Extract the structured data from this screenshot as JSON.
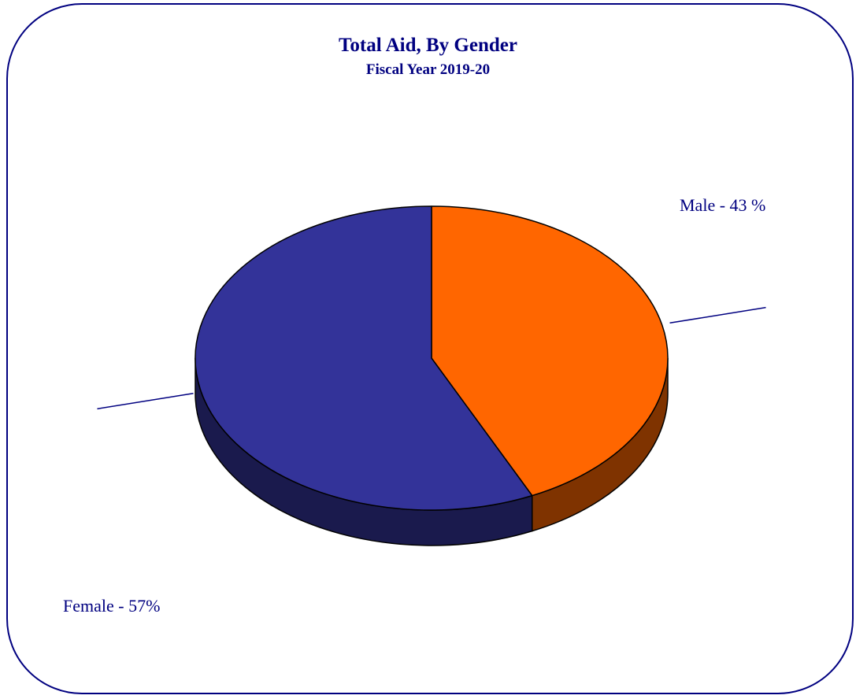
{
  "chart_data": {
    "type": "pie",
    "title": "Total Aid, By Gender",
    "subtitle": "Fiscal Year 2019-20",
    "slices": [
      {
        "name": "Male",
        "value": 43,
        "label": "Male - 43 %",
        "color": "#FF6600",
        "side_color": "#7F3300"
      },
      {
        "name": "Female",
        "value": 57,
        "label": "Female - 57%",
        "color": "#333399",
        "side_color": "#1A1A4D"
      }
    ],
    "three_d": true,
    "start": "12 o'clock, clockwise",
    "legend": "none",
    "border_color": "#000080",
    "text_color": "#000080"
  }
}
